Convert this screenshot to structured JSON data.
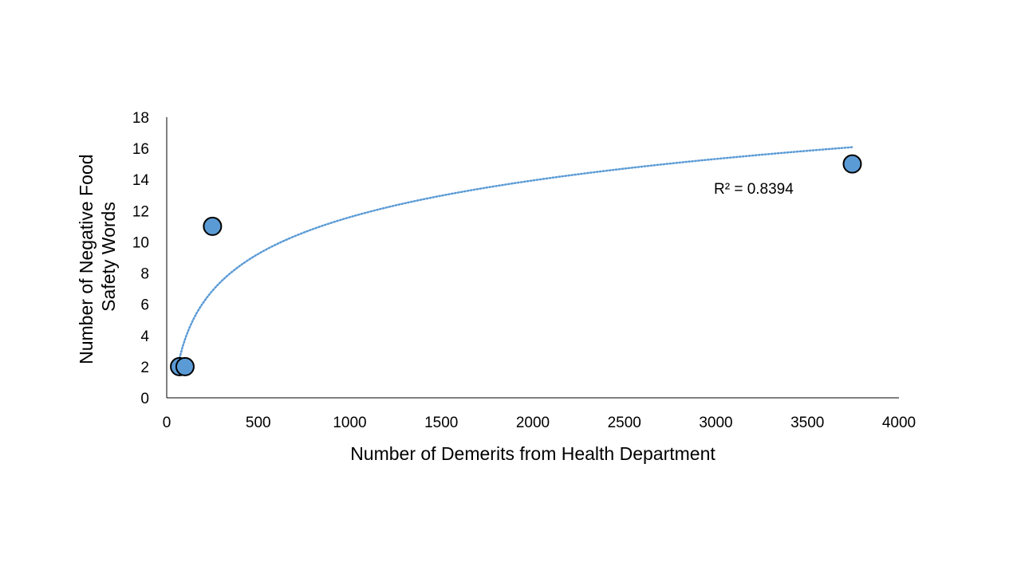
{
  "chart_data": {
    "type": "scatter",
    "title": "",
    "xlabel": "Number of Demerits from Health Department",
    "ylabel_lines": [
      "Number of Negative Food",
      "Safety Words"
    ],
    "xlim": [
      0,
      4000
    ],
    "ylim": [
      0,
      18
    ],
    "x_ticks": [
      0,
      500,
      1000,
      1500,
      2000,
      2500,
      3000,
      3500,
      4000
    ],
    "y_ticks": [
      0,
      2,
      4,
      6,
      8,
      10,
      12,
      14,
      16,
      18
    ],
    "x_tick_labels": [
      "0",
      "500",
      "1000",
      "1500",
      "2000",
      "2500",
      "3000",
      "3500",
      "4000"
    ],
    "y_tick_labels": [
      "0",
      "2",
      "4",
      "6",
      "8",
      "10",
      "12",
      "14",
      "16",
      "18"
    ],
    "grid": false,
    "legend": "none",
    "series": [
      {
        "x": [
          70,
          100,
          250,
          3745
        ],
        "y": [
          2,
          2,
          11,
          15
        ]
      }
    ],
    "trendline": {
      "type": "logarithmic",
      "slope": 3.4,
      "intercept": -11.9,
      "x_range": [
        70,
        3745
      ],
      "label": "R² = 0.8394"
    },
    "colors": {
      "marker_fill": "#5B9BD5",
      "marker_stroke": "#000000",
      "trendline": "#5B9BD5",
      "axis": "#000000"
    }
  }
}
